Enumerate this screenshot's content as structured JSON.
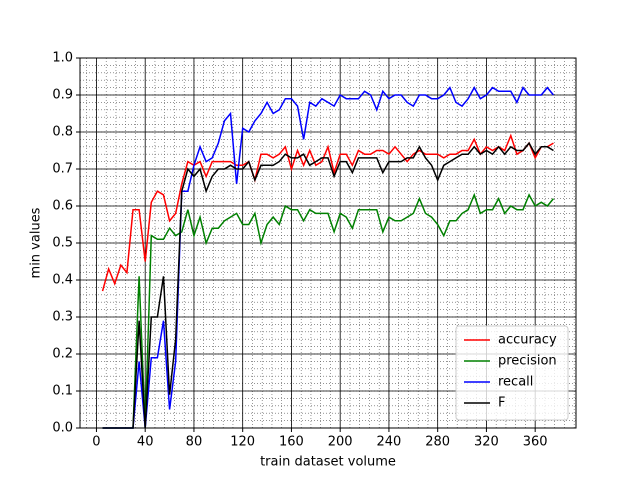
{
  "chart_data": {
    "type": "line",
    "xlabel": "train dataset volume",
    "ylabel": "min values",
    "x": [
      5,
      10,
      15,
      20,
      25,
      30,
      35,
      40,
      45,
      50,
      55,
      60,
      65,
      70,
      75,
      80,
      85,
      90,
      95,
      100,
      105,
      110,
      115,
      120,
      125,
      130,
      135,
      140,
      145,
      150,
      155,
      160,
      165,
      170,
      175,
      180,
      185,
      190,
      195,
      200,
      205,
      210,
      215,
      220,
      225,
      230,
      235,
      240,
      245,
      250,
      255,
      260,
      265,
      270,
      275,
      280,
      285,
      290,
      295,
      300,
      305,
      310,
      315,
      320,
      325,
      330,
      335,
      340,
      345,
      350,
      355,
      360,
      365,
      370,
      375
    ],
    "series": [
      {
        "name": "accuracy",
        "color": "#ff0000",
        "values": [
          0.37,
          0.43,
          0.39,
          0.44,
          0.42,
          0.59,
          0.59,
          0.45,
          0.61,
          0.64,
          0.63,
          0.56,
          0.58,
          0.66,
          0.72,
          0.71,
          0.72,
          0.68,
          0.72,
          0.72,
          0.72,
          0.72,
          0.71,
          0.71,
          0.72,
          0.67,
          0.74,
          0.74,
          0.73,
          0.74,
          0.76,
          0.7,
          0.75,
          0.71,
          0.75,
          0.71,
          0.72,
          0.76,
          0.69,
          0.74,
          0.74,
          0.71,
          0.75,
          0.74,
          0.74,
          0.75,
          0.75,
          0.74,
          0.76,
          0.74,
          0.72,
          0.74,
          0.75,
          0.74,
          0.74,
          0.74,
          0.73,
          0.74,
          0.74,
          0.75,
          0.75,
          0.78,
          0.74,
          0.76,
          0.75,
          0.76,
          0.75,
          0.79,
          0.74,
          0.75,
          0.77,
          0.73,
          0.76,
          0.76,
          0.77
        ]
      },
      {
        "name": "precision",
        "color": "#008000",
        "values": [
          0,
          0,
          0,
          0,
          0,
          0,
          0.41,
          0.0,
          0.52,
          0.51,
          0.51,
          0.54,
          0.52,
          0.53,
          0.59,
          0.52,
          0.57,
          0.5,
          0.54,
          0.54,
          0.56,
          0.57,
          0.58,
          0.55,
          0.55,
          0.58,
          0.5,
          0.55,
          0.57,
          0.55,
          0.6,
          0.59,
          0.59,
          0.56,
          0.59,
          0.58,
          0.58,
          0.58,
          0.53,
          0.58,
          0.57,
          0.54,
          0.59,
          0.59,
          0.59,
          0.59,
          0.53,
          0.57,
          0.56,
          0.56,
          0.57,
          0.58,
          0.62,
          0.58,
          0.57,
          0.55,
          0.52,
          0.56,
          0.56,
          0.58,
          0.59,
          0.63,
          0.58,
          0.59,
          0.59,
          0.62,
          0.58,
          0.6,
          0.59,
          0.59,
          0.63,
          0.6,
          0.61,
          0.6,
          0.62
        ]
      },
      {
        "name": "recall",
        "color": "#0000ff",
        "values": [
          0,
          0,
          0,
          0,
          0,
          0,
          0.18,
          0.0,
          0.19,
          0.19,
          0.29,
          0.05,
          0.18,
          0.64,
          0.64,
          0.71,
          0.76,
          0.72,
          0.73,
          0.77,
          0.83,
          0.85,
          0.66,
          0.81,
          0.8,
          0.83,
          0.85,
          0.88,
          0.85,
          0.86,
          0.89,
          0.89,
          0.87,
          0.78,
          0.88,
          0.87,
          0.89,
          0.88,
          0.87,
          0.9,
          0.89,
          0.89,
          0.89,
          0.91,
          0.9,
          0.86,
          0.91,
          0.89,
          0.9,
          0.9,
          0.88,
          0.87,
          0.9,
          0.9,
          0.89,
          0.89,
          0.9,
          0.92,
          0.88,
          0.87,
          0.89,
          0.92,
          0.89,
          0.9,
          0.92,
          0.91,
          0.91,
          0.91,
          0.88,
          0.92,
          0.9,
          0.9,
          0.9,
          0.92,
          0.9
        ]
      },
      {
        "name": "F",
        "color": "#000000",
        "values": [
          0,
          0,
          0,
          0,
          0,
          0,
          0.29,
          0.0,
          0.3,
          0.3,
          0.41,
          0.09,
          0.24,
          0.64,
          0.7,
          0.68,
          0.7,
          0.64,
          0.68,
          0.7,
          0.7,
          0.71,
          0.7,
          0.7,
          0.72,
          0.67,
          0.71,
          0.71,
          0.71,
          0.72,
          0.74,
          0.73,
          0.73,
          0.74,
          0.71,
          0.72,
          0.73,
          0.73,
          0.68,
          0.72,
          0.72,
          0.69,
          0.73,
          0.73,
          0.73,
          0.73,
          0.69,
          0.72,
          0.72,
          0.72,
          0.73,
          0.73,
          0.76,
          0.73,
          0.71,
          0.67,
          0.71,
          0.72,
          0.73,
          0.74,
          0.74,
          0.76,
          0.74,
          0.75,
          0.74,
          0.76,
          0.74,
          0.76,
          0.75,
          0.75,
          0.77,
          0.74,
          0.76,
          0.76,
          0.75
        ]
      }
    ],
    "xlim": [
      -13.5,
      393.5
    ],
    "ylim": [
      0,
      1
    ],
    "xticks": [
      0,
      40,
      80,
      120,
      160,
      200,
      240,
      280,
      320,
      360
    ],
    "yticks": [
      {
        "value": 0,
        "label": "0.0"
      },
      {
        "value": 0.1,
        "label": "0.1"
      },
      {
        "value": 0.2,
        "label": "0.2"
      },
      {
        "value": 0.3,
        "label": "0.3"
      },
      {
        "value": 0.4,
        "label": "0.4"
      },
      {
        "value": 0.5,
        "label": "0.5"
      },
      {
        "value": 0.6,
        "label": "0.6"
      },
      {
        "value": 0.7,
        "label": "0.7"
      },
      {
        "value": 0.8,
        "label": "0.8"
      },
      {
        "value": 0.9,
        "label": "0.9"
      },
      {
        "value": 1,
        "label": "1.0"
      }
    ],
    "grid": true,
    "minor_grid": true,
    "legend": "lower right"
  }
}
